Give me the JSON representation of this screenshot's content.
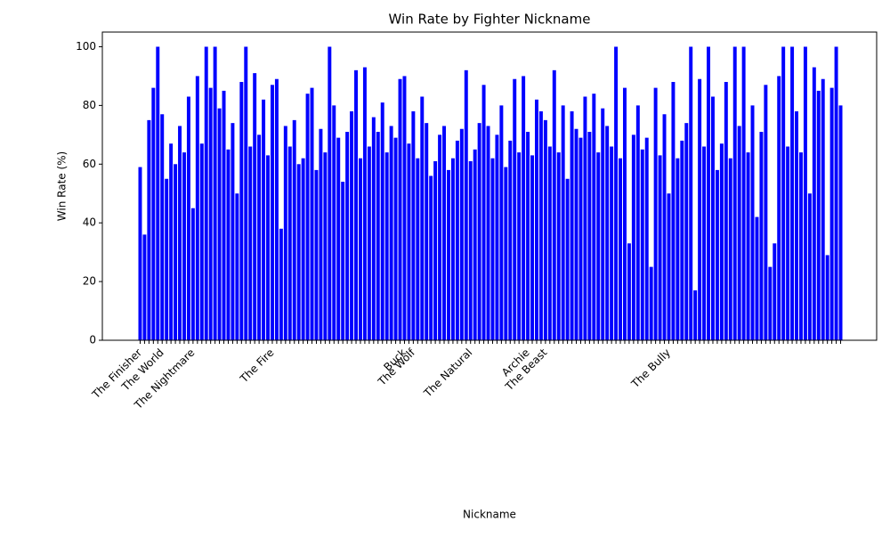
{
  "chart_data": {
    "type": "bar",
    "title": "Win Rate by Fighter Nickname",
    "xlabel": "Nickname",
    "ylabel": "Win Rate (%)",
    "color": "#0000ff",
    "ylim": [
      0,
      105
    ],
    "yticks": [
      0,
      20,
      40,
      60,
      80,
      100
    ],
    "categories": [
      "The Finisher",
      null,
      null,
      null,
      null,
      "The World",
      null,
      null,
      null,
      null,
      null,
      null,
      "The Nightmare",
      null,
      null,
      null,
      null,
      null,
      null,
      null,
      null,
      null,
      null,
      null,
      null,
      null,
      null,
      null,
      null,
      null,
      "The Fire",
      null,
      null,
      null,
      null,
      null,
      null,
      null,
      null,
      null,
      null,
      null,
      null,
      null,
      null,
      null,
      null,
      null,
      null,
      null,
      null,
      null,
      null,
      null,
      null,
      null,
      null,
      null,
      null,
      null,
      "Buck",
      null,
      "The Wolf",
      null,
      null,
      null,
      null,
      null,
      null,
      null,
      null,
      null,
      null,
      null,
      null,
      "The Natural",
      null,
      null,
      null,
      null,
      null,
      null,
      null,
      null,
      null,
      null,
      null,
      null,
      "Archie",
      null,
      null,
      null,
      "The Beast",
      null,
      null,
      null,
      null,
      null,
      null,
      null,
      null,
      null,
      null,
      null,
      null,
      null,
      null,
      null,
      null,
      null,
      null,
      null,
      null,
      null,
      null,
      null,
      null,
      null,
      null,
      null,
      "The Bully",
      null,
      null,
      null,
      null,
      null,
      null,
      null,
      null,
      null,
      null,
      null,
      null,
      null,
      null,
      null,
      null,
      null,
      null,
      null,
      null,
      null,
      null,
      null,
      null,
      null,
      null,
      null,
      null,
      null,
      null,
      null,
      null,
      null,
      null,
      null,
      null,
      null,
      null,
      null
    ],
    "values": [
      59,
      36,
      75,
      86,
      100,
      77,
      55,
      67,
      60,
      73,
      64,
      83,
      45,
      90,
      67,
      100,
      86,
      100,
      79,
      85,
      65,
      74,
      50,
      88,
      100,
      66,
      91,
      70,
      82,
      63,
      87,
      89,
      38,
      73,
      66,
      75,
      60,
      62,
      84,
      86,
      58,
      72,
      64,
      100,
      80,
      69,
      54,
      71,
      78,
      92,
      62,
      93,
      66,
      76,
      71,
      81,
      64,
      73,
      69,
      89,
      90,
      67,
      78,
      62,
      83,
      74,
      56,
      61,
      70,
      73,
      58,
      62,
      68,
      72,
      92,
      61,
      65,
      74,
      87,
      73,
      62,
      70,
      80,
      59,
      68,
      89,
      64,
      90,
      71,
      63,
      82,
      78,
      75,
      66,
      92,
      64,
      80,
      55,
      78,
      72,
      69,
      83,
      71,
      84,
      64,
      79,
      73,
      66,
      100,
      62,
      86,
      33,
      70,
      80,
      65,
      69,
      25,
      86,
      63,
      77,
      50,
      88,
      62,
      68,
      74,
      100,
      17,
      89,
      66,
      100,
      83,
      58,
      67,
      88,
      62,
      100,
      73,
      100,
      64,
      80,
      42,
      71,
      87,
      25,
      33,
      90,
      100,
      66,
      100,
      78,
      64,
      100,
      50,
      93,
      85,
      89,
      29,
      86,
      100,
      80
    ]
  }
}
